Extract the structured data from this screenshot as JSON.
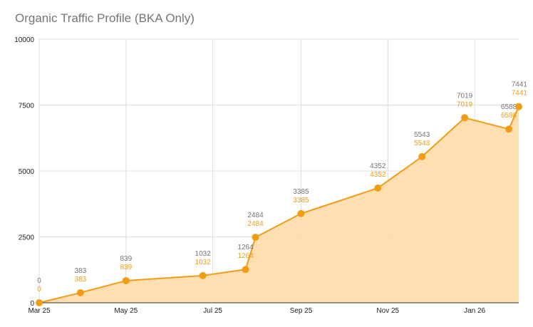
{
  "chart_data": {
    "type": "area",
    "title": "Organic Traffic Profile (BKA Only)",
    "xlabel": "",
    "ylabel": "",
    "x": [
      "2025-03-01",
      "2025-03-30",
      "2025-05-01",
      "2025-06-24",
      "2025-07-24",
      "2025-07-31",
      "2025-09-01",
      "2025-10-25",
      "2025-11-25",
      "2025-12-25",
      "2026-01-25",
      "2026-02-01"
    ],
    "series": [
      {
        "values": [
          0,
          383,
          839,
          1032,
          1264,
          2484,
          3385,
          4352,
          5543,
          7019,
          6588,
          7441
        ]
      }
    ],
    "data_labels": true,
    "ylim": [
      0,
      10000
    ],
    "yticks": [
      0,
      2500,
      5000,
      7500,
      10000
    ],
    "xlim": [
      "2025-03-01",
      "2026-02-01"
    ],
    "xticks": [
      {
        "date": "2025-03-01",
        "label": "Mar 25"
      },
      {
        "date": "2025-05-01",
        "label": "May 25"
      },
      {
        "date": "2025-07-01",
        "label": "Jul 25"
      },
      {
        "date": "2025-09-01",
        "label": "Sep 25"
      },
      {
        "date": "2025-11-01",
        "label": "Nov 25"
      },
      {
        "date": "2026-01-01",
        "label": "Jan 26"
      }
    ],
    "grid": true,
    "colors": {
      "line": "#f29c16",
      "fill": "#fddcaa",
      "grid": "#dddddd",
      "label": "#757575"
    }
  }
}
